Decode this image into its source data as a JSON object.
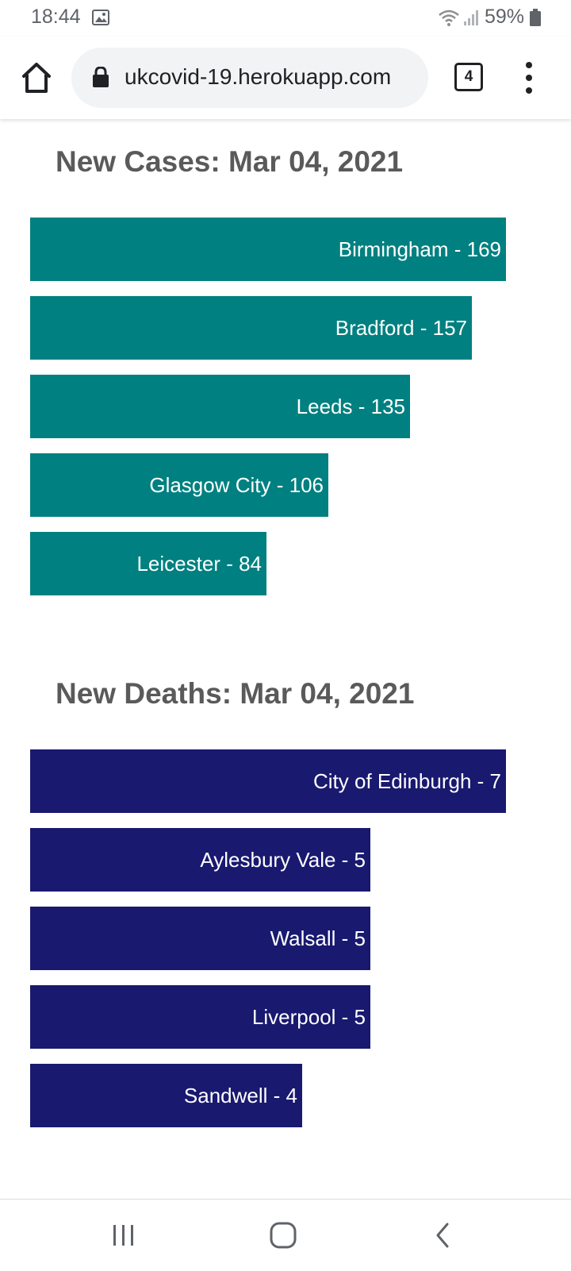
{
  "status_bar": {
    "time": "18:44",
    "battery": "59%",
    "icons": [
      "gallery-icon",
      "wifi-icon",
      "signal-icon",
      "battery-icon"
    ]
  },
  "browser": {
    "url": "ukcovid-19.herokuapp.com",
    "tab_count": "4",
    "icons": [
      "home-icon",
      "lock-icon",
      "tabs-icon",
      "more-vert-icon"
    ]
  },
  "cases": {
    "title": "New Cases: Mar 04, 2021",
    "color": "#008080"
  },
  "deaths": {
    "title": "New Deaths: Mar 04, 2021",
    "color": "#191970"
  },
  "chart_data": [
    {
      "type": "bar",
      "orientation": "horizontal",
      "title": "New Cases: Mar 04, 2021",
      "categories": [
        "Birmingham",
        "Bradford",
        "Leeds",
        "Glasgow City",
        "Leicester"
      ],
      "values": [
        169,
        157,
        135,
        106,
        84
      ],
      "labels": [
        "Birmingham - 169",
        "Bradford - 157",
        "Leeds - 135",
        "Glasgow City - 106",
        "Leicester - 84"
      ],
      "color": "#008080"
    },
    {
      "type": "bar",
      "orientation": "horizontal",
      "title": "New Deaths: Mar 04, 2021",
      "categories": [
        "City of Edinburgh",
        "Aylesbury Vale",
        "Walsall",
        "Liverpool",
        "Sandwell"
      ],
      "values": [
        7,
        5,
        5,
        5,
        4
      ],
      "labels": [
        "City of Edinburgh - 7",
        "Aylesbury Vale - 5",
        "Walsall - 5",
        "Liverpool - 5",
        "Sandwell - 4"
      ],
      "color": "#191970"
    }
  ],
  "nav_bar": {
    "icons": [
      "recent-apps-icon",
      "home-nav-icon",
      "back-icon"
    ]
  }
}
